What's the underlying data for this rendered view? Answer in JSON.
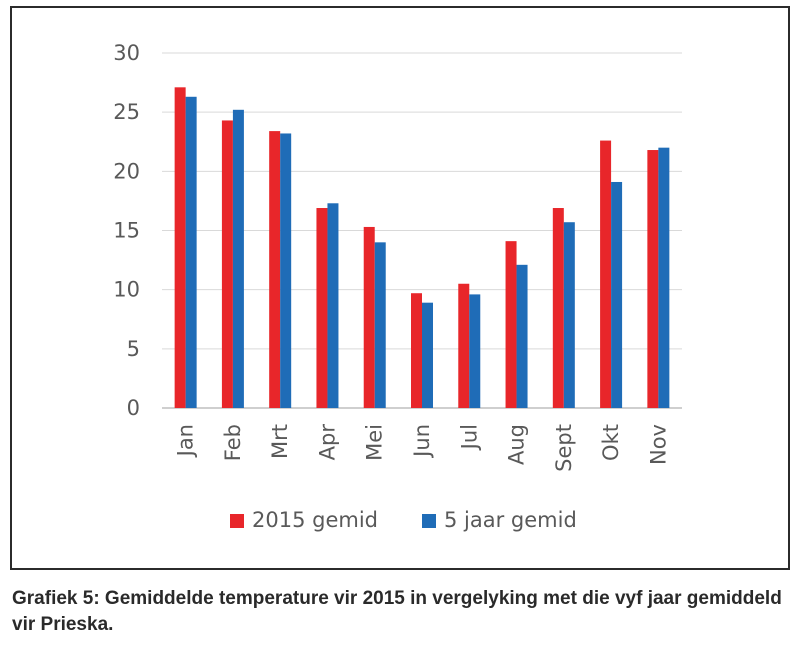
{
  "chart_data": {
    "type": "bar",
    "categories": [
      "Jan",
      "Feb",
      "Mrt",
      "Apr",
      "Mei",
      "Jun",
      "Jul",
      "Aug",
      "Sept",
      "Okt",
      "Nov"
    ],
    "series": [
      {
        "name": "2015 gemid",
        "color": "#e8262a",
        "values": [
          27.1,
          24.3,
          23.4,
          16.9,
          15.3,
          9.7,
          10.5,
          14.1,
          16.9,
          22.6,
          21.8
        ]
      },
      {
        "name": "5 jaar gemid",
        "color": "#1f6cb7",
        "values": [
          26.3,
          25.2,
          23.2,
          17.3,
          14.0,
          8.9,
          9.6,
          12.1,
          15.7,
          19.1,
          22.0
        ]
      }
    ],
    "yticks": [
      0,
      5,
      10,
      15,
      20,
      25,
      30
    ],
    "ylim": [
      0,
      30
    ],
    "grid": true,
    "legend_position": "bottom"
  },
  "caption": "Grafiek 5: Gemiddelde temperature vir 2015 in vergelyking met die vyf jaar gemiddeld vir Prieska."
}
